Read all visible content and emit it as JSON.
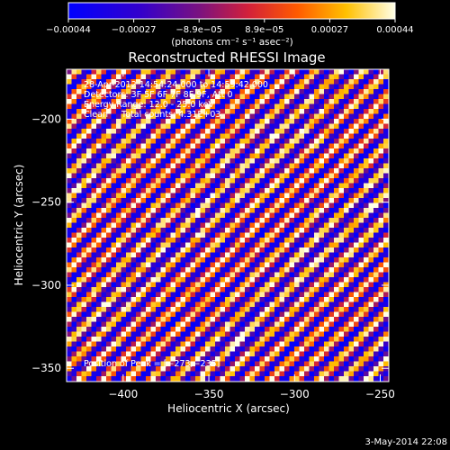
{
  "chart_data": {
    "type": "heatmap",
    "title": "Reconstructed RHESSI Image",
    "xlabel": "Heliocentric X (arcsec)",
    "ylabel": "Heliocentric Y (arcsec)",
    "xlim": [
      -433,
      -245
    ],
    "ylim": [
      -358,
      -170
    ],
    "x_ticks": [
      -400,
      -350,
      -300,
      -250
    ],
    "x_tick_labels": [
      "−400",
      "−350",
      "−300",
      "−250"
    ],
    "y_ticks": [
      -200,
      -250,
      -300,
      -350
    ],
    "y_tick_labels": [
      "−200",
      "−250",
      "−300",
      "−350"
    ],
    "colorbar": {
      "range": [
        -0.00044,
        0.00044
      ],
      "tick_labels": [
        "−0.00044",
        "−0.00027",
        "−8.9e−05",
        "8.9e−05",
        "0.00027",
        "0.00044"
      ],
      "unit_label": "(photons cm⁻² s⁻¹ asec⁻²)",
      "colormap": "blue-purple-red-yellow-white"
    },
    "pattern": {
      "description_visible": "diagonal stripes",
      "stripe_period_arcsec": 14,
      "orientation_deg": -45
    },
    "annotations": [
      "28-Apr-2012 14:54:24.000 to 14:59:42.000",
      "Detectors: 3F 5F 6F 7F 8F 9F, Att 0",
      "Energy Range: 12.0 - 25.0 keV",
      "Clean     Total counts: 4.31E+03"
    ],
    "peak_label": "Position of Peak = [−273,−235]"
  },
  "footer": {
    "timestamp": "3-May-2014 22:08"
  },
  "colors": {
    "background": "#000000",
    "text": "#ffffff"
  }
}
